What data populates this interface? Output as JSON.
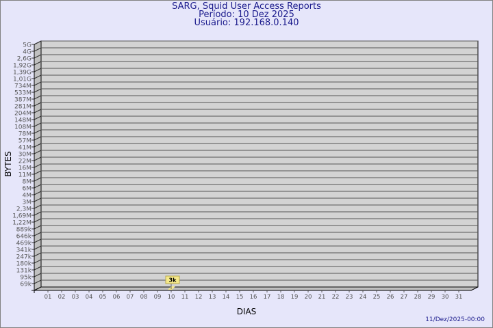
{
  "header": {
    "title": "SARG, Squid User Access Reports",
    "period": "Período: 10 Dez 2025",
    "user": "Usuário: 192.168.0.140"
  },
  "footer": {
    "timestamp": "11/Dez/2025-00:00"
  },
  "colors": {
    "background": "#e6e6fa",
    "wall": "#d3d3d3",
    "side_wall": "#c0c0c0",
    "bar": "#f5e98a",
    "text": "#1a1a8c"
  },
  "chart_data": {
    "type": "bar",
    "xlabel": "DIAS",
    "ylabel": "BYTES",
    "y_scale": "log",
    "grid": true,
    "y_tick_labels": [
      "5G",
      "4G",
      "2,6G",
      "1,92G",
      "1,39G",
      "1,01G",
      "734M",
      "533M",
      "387M",
      "281M",
      "204M",
      "148M",
      "108M",
      "78M",
      "57M",
      "41M",
      "30M",
      "22M",
      "16M",
      "11M",
      "8M",
      "6M",
      "4M",
      "3M",
      "2,3M",
      "1,69M",
      "1,22M",
      "889k",
      "646k",
      "469k",
      "341k",
      "247k",
      "180k",
      "131k",
      "95k",
      "69k"
    ],
    "categories": [
      "01",
      "02",
      "03",
      "04",
      "05",
      "06",
      "07",
      "08",
      "09",
      "10",
      "11",
      "12",
      "13",
      "14",
      "15",
      "16",
      "17",
      "18",
      "19",
      "20",
      "21",
      "22",
      "23",
      "24",
      "25",
      "26",
      "27",
      "28",
      "29",
      "30",
      "31"
    ],
    "series": [
      {
        "values": [
          null,
          null,
          null,
          null,
          null,
          null,
          null,
          null,
          null,
          3000,
          null,
          null,
          null,
          null,
          null,
          null,
          null,
          null,
          null,
          null,
          null,
          null,
          null,
          null,
          null,
          null,
          null,
          null,
          null,
          null,
          null
        ],
        "data_labels": [
          null,
          null,
          null,
          null,
          null,
          null,
          null,
          null,
          null,
          "3k",
          null,
          null,
          null,
          null,
          null,
          null,
          null,
          null,
          null,
          null,
          null,
          null,
          null,
          null,
          null,
          null,
          null,
          null,
          null,
          null,
          null
        ]
      }
    ]
  }
}
